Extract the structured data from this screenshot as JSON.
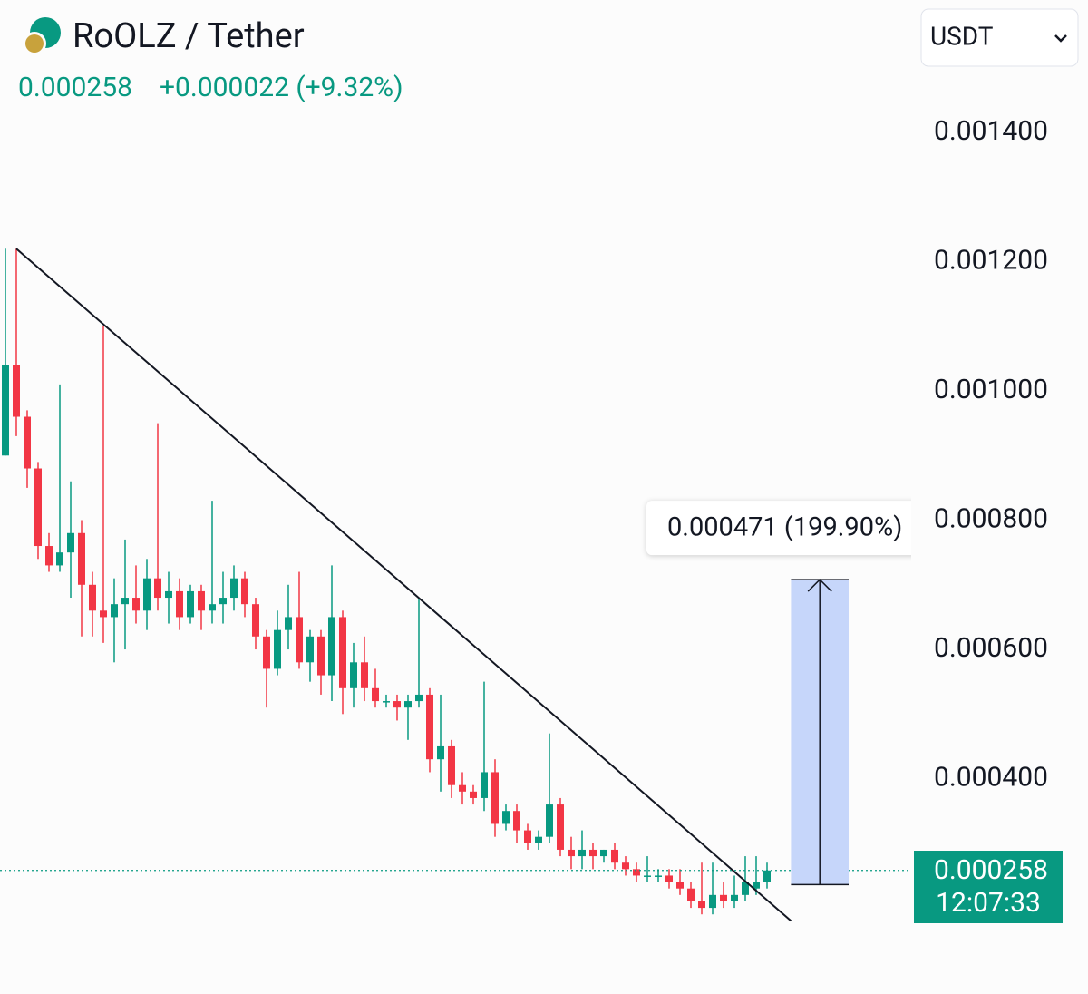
{
  "chart_data": {
    "type": "candlestick",
    "title": "RoOLZ / Tether",
    "last_price": 0.000258,
    "change": "+0.000022 (+9.32%)",
    "currency": "USDT",
    "time_left": "12:07:33",
    "up_color": "#089981",
    "down_color": "#f23645",
    "ylim": [
      6.68e-05,
      0.0014505
    ],
    "yticks": [
      {
        "value": 0.0004,
        "label": "0.000400"
      },
      {
        "value": 0.0006,
        "label": "0.000600"
      },
      {
        "value": 0.0008,
        "label": "0.000800"
      },
      {
        "value": 0.001,
        "label": "0.001000"
      },
      {
        "value": 0.0012,
        "label": "0.001200"
      },
      {
        "value": 0.0014,
        "label": "0.001400"
      }
    ],
    "ohlc": [
      [
        0.0009,
        0.00122,
        0.0009,
        0.00104
      ],
      [
        0.00104,
        0.00122,
        0.00093,
        0.00096
      ],
      [
        0.00096,
        0.00097,
        0.00085,
        0.00088
      ],
      [
        0.00088,
        0.00089,
        0.00074,
        0.00076
      ],
      [
        0.00076,
        0.00078,
        0.00072,
        0.00073
      ],
      [
        0.00073,
        0.00101,
        0.00072,
        0.00075
      ],
      [
        0.00075,
        0.00086,
        0.00068,
        0.00078
      ],
      [
        0.00078,
        0.0008,
        0.00062,
        0.0007
      ],
      [
        0.0007,
        0.00072,
        0.00062,
        0.00066
      ],
      [
        0.00066,
        0.0011,
        0.00061,
        0.00065
      ],
      [
        0.00065,
        0.00071,
        0.00058,
        0.00067
      ],
      [
        0.00067,
        0.00077,
        0.0006,
        0.00068
      ],
      [
        0.00068,
        0.00073,
        0.00064,
        0.00066
      ],
      [
        0.00066,
        0.00074,
        0.00063,
        0.00071
      ],
      [
        0.00071,
        0.00095,
        0.00066,
        0.00068
      ],
      [
        0.00068,
        0.00072,
        0.00064,
        0.00069
      ],
      [
        0.00069,
        0.00071,
        0.00063,
        0.00065
      ],
      [
        0.00065,
        0.0007,
        0.00064,
        0.00069
      ],
      [
        0.00069,
        0.0007,
        0.00063,
        0.00066
      ],
      [
        0.00066,
        0.00083,
        0.00064,
        0.00067
      ],
      [
        0.00067,
        0.00072,
        0.00064,
        0.00068
      ],
      [
        0.00068,
        0.00073,
        0.00066,
        0.00071
      ],
      [
        0.00071,
        0.00072,
        0.00065,
        0.00067
      ],
      [
        0.00067,
        0.00068,
        0.0006,
        0.00062
      ],
      [
        0.00062,
        0.00063,
        0.00051,
        0.00057
      ],
      [
        0.00057,
        0.00066,
        0.00056,
        0.00063
      ],
      [
        0.00063,
        0.0007,
        0.0006,
        0.00065
      ],
      [
        0.00065,
        0.00072,
        0.00057,
        0.00058
      ],
      [
        0.00058,
        0.00063,
        0.00055,
        0.00062
      ],
      [
        0.00062,
        0.00063,
        0.00053,
        0.00056
      ],
      [
        0.00056,
        0.00073,
        0.00052,
        0.00065
      ],
      [
        0.00065,
        0.00066,
        0.0005,
        0.00054
      ],
      [
        0.00054,
        0.00061,
        0.00051,
        0.00058
      ],
      [
        0.00058,
        0.00062,
        0.00052,
        0.00054
      ],
      [
        0.00054,
        0.00057,
        0.00051,
        0.00052
      ],
      [
        0.00052,
        0.00053,
        0.00051,
        0.00052
      ],
      [
        0.00052,
        0.00053,
        0.00049,
        0.00051
      ],
      [
        0.00051,
        0.00053,
        0.00046,
        0.00052
      ],
      [
        0.00052,
        0.00068,
        0.00051,
        0.00053
      ],
      [
        0.00053,
        0.00054,
        0.00041,
        0.00043
      ],
      [
        0.00043,
        0.00053,
        0.00038,
        0.00045
      ],
      [
        0.00045,
        0.00046,
        0.00037,
        0.00039
      ],
      [
        0.00039,
        0.00041,
        0.00036,
        0.00038
      ],
      [
        0.00038,
        0.00039,
        0.00036,
        0.00037
      ],
      [
        0.00037,
        0.00055,
        0.00035,
        0.00041
      ],
      [
        0.00041,
        0.00043,
        0.00031,
        0.00033
      ],
      [
        0.00033,
        0.00036,
        0.00032,
        0.00035
      ],
      [
        0.00035,
        0.00036,
        0.0003,
        0.00032
      ],
      [
        0.00032,
        0.00033,
        0.00029,
        0.0003
      ],
      [
        0.0003,
        0.00032,
        0.00029,
        0.00031
      ],
      [
        0.00031,
        0.00047,
        0.0003,
        0.00036
      ],
      [
        0.00036,
        0.00037,
        0.00028,
        0.00029
      ],
      [
        0.00029,
        0.00031,
        0.00026,
        0.00028
      ],
      [
        0.00028,
        0.00032,
        0.00026,
        0.00029
      ],
      [
        0.00029,
        0.0003,
        0.00026,
        0.00028
      ],
      [
        0.00028,
        0.00029,
        0.00027,
        0.00029
      ],
      [
        0.00029,
        0.0003,
        0.00026,
        0.00027
      ],
      [
        0.00027,
        0.00028,
        0.00025,
        0.00026
      ],
      [
        0.00026,
        0.00027,
        0.00024,
        0.00025
      ],
      [
        0.00025,
        0.00028,
        0.00024,
        0.00025
      ],
      [
        0.00025,
        0.00026,
        0.00024,
        0.00025
      ],
      [
        0.00025,
        0.00026,
        0.00023,
        0.00024
      ],
      [
        0.00024,
        0.00026,
        0.00022,
        0.00023
      ],
      [
        0.00023,
        0.00024,
        0.0002,
        0.00021
      ],
      [
        0.00021,
        0.00027,
        0.00019,
        0.0002
      ],
      [
        0.0002,
        0.00027,
        0.00019,
        0.00022
      ],
      [
        0.00022,
        0.00024,
        0.0002,
        0.00021
      ],
      [
        0.00021,
        0.00025,
        0.0002,
        0.00022
      ],
      [
        0.00022,
        0.00028,
        0.00021,
        0.00024
      ],
      [
        0.00023,
        0.00028,
        0.00022,
        0.00024
      ],
      [
        0.00024,
        0.00027,
        0.00023,
        0.000258
      ]
    ],
    "trendline": {
      "x": [
        1,
        72.2
      ],
      "y": [
        0.00122,
        0.00018
      ]
    },
    "measure": {
      "x": [
        72.2,
        77.5
      ],
      "from": 0.000236,
      "to": 0.000708,
      "label": "0.000471 (199.90%)"
    }
  }
}
